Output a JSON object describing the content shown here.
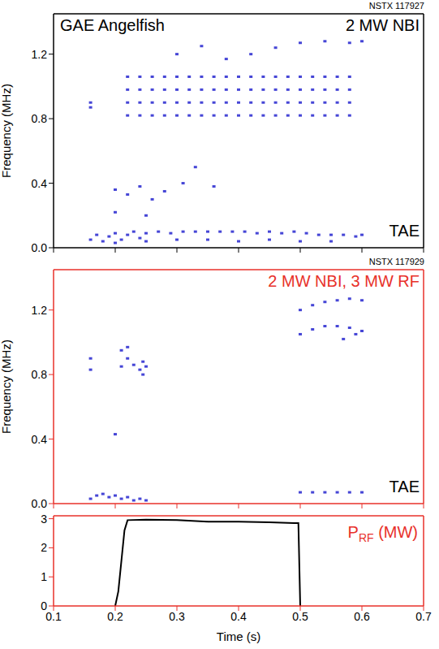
{
  "chart_data": [
    {
      "type": "scatter",
      "title": "GAE Angelfish",
      "subtitle": "2 MW NBI",
      "annotations": [
        "NSTX 117927",
        "TAE"
      ],
      "ylabel": "Frequency (MHz)",
      "color": "#4646d6",
      "marker": "square",
      "tick_labels": "y",
      "xlim": [
        0.1,
        0.7
      ],
      "xticks": [
        0.1,
        0.2,
        0.3,
        0.4,
        0.5,
        0.6,
        0.7
      ],
      "ylim": [
        0,
        1.45
      ],
      "yticks": [
        {
          "value": 0,
          "label": "0.0"
        },
        0.4,
        0.8,
        1.2
      ],
      "x": [
        0.16,
        0.17,
        0.18,
        0.19,
        0.2,
        0.21,
        0.22,
        0.23,
        0.24,
        0.25,
        0.27,
        0.29,
        0.31,
        0.33,
        0.35,
        0.37,
        0.39,
        0.41,
        0.43,
        0.45,
        0.47,
        0.49,
        0.51,
        0.53,
        0.55,
        0.57,
        0.59,
        0.6,
        0.2,
        0.25,
        0.3,
        0.35,
        0.4,
        0.45,
        0.5,
        0.55,
        0.16,
        0.16,
        0.22,
        0.22,
        0.22,
        0.22,
        0.24,
        0.24,
        0.24,
        0.24,
        0.26,
        0.26,
        0.26,
        0.26,
        0.28,
        0.28,
        0.28,
        0.28,
        0.3,
        0.3,
        0.3,
        0.3,
        0.32,
        0.32,
        0.32,
        0.32,
        0.34,
        0.34,
        0.34,
        0.34,
        0.36,
        0.36,
        0.36,
        0.36,
        0.38,
        0.38,
        0.38,
        0.38,
        0.4,
        0.4,
        0.4,
        0.4,
        0.42,
        0.42,
        0.42,
        0.42,
        0.44,
        0.44,
        0.44,
        0.44,
        0.46,
        0.46,
        0.46,
        0.46,
        0.48,
        0.48,
        0.48,
        0.48,
        0.5,
        0.5,
        0.5,
        0.5,
        0.52,
        0.52,
        0.52,
        0.52,
        0.54,
        0.54,
        0.54,
        0.54,
        0.56,
        0.56,
        0.56,
        0.56,
        0.58,
        0.58,
        0.58,
        0.58,
        0.34,
        0.42,
        0.46,
        0.5,
        0.54,
        0.58,
        0.6,
        0.3,
        0.38,
        0.2,
        0.22,
        0.24,
        0.26,
        0.28,
        0.31,
        0.33,
        0.36,
        0.2,
        0.25
      ],
      "values": [
        0.05,
        0.08,
        0.04,
        0.07,
        0.09,
        0.05,
        0.08,
        0.1,
        0.06,
        0.09,
        0.1,
        0.09,
        0.1,
        0.1,
        0.1,
        0.1,
        0.1,
        0.1,
        0.09,
        0.1,
        0.09,
        0.1,
        0.09,
        0.08,
        0.08,
        0.08,
        0.07,
        0.08,
        0.03,
        0.04,
        0.05,
        0.05,
        0.04,
        0.05,
        0.04,
        0.04,
        0.87,
        0.9,
        0.82,
        0.9,
        0.98,
        1.06,
        0.82,
        0.9,
        0.98,
        1.06,
        0.82,
        0.9,
        0.98,
        1.06,
        0.82,
        0.9,
        0.98,
        1.06,
        0.82,
        0.9,
        0.98,
        1.06,
        0.82,
        0.9,
        0.98,
        1.06,
        0.82,
        0.9,
        0.98,
        1.06,
        0.82,
        0.9,
        0.98,
        1.06,
        0.82,
        0.9,
        0.98,
        1.06,
        0.82,
        0.9,
        0.98,
        1.06,
        0.82,
        0.9,
        0.98,
        1.06,
        0.82,
        0.9,
        0.98,
        1.06,
        0.82,
        0.9,
        0.98,
        1.06,
        0.82,
        0.9,
        0.98,
        1.06,
        0.82,
        0.9,
        0.98,
        1.06,
        0.82,
        0.9,
        0.98,
        1.06,
        0.82,
        0.9,
        0.98,
        1.06,
        0.82,
        0.9,
        0.98,
        1.06,
        0.82,
        0.9,
        0.98,
        1.06,
        1.25,
        1.2,
        1.24,
        1.27,
        1.28,
        1.27,
        1.28,
        1.2,
        1.17,
        0.36,
        0.33,
        0.38,
        0.3,
        0.35,
        0.4,
        0.5,
        0.38,
        0.22,
        0.2
      ]
    },
    {
      "type": "scatter",
      "subtitle": "2 MW NBI, 3 MW RF",
      "annotations": [
        "NSTX 117929",
        "TAE"
      ],
      "ylabel": "Frequency (MHz)",
      "color": "#4646d6",
      "marker": "square",
      "tick_labels": "y",
      "xlim": [
        0.1,
        0.7
      ],
      "xticks": [
        0.1,
        0.2,
        0.3,
        0.4,
        0.5,
        0.6,
        0.7
      ],
      "ylim": [
        0,
        1.45
      ],
      "yticks": [
        {
          "value": 0,
          "label": "0.0"
        },
        0.4,
        0.8,
        1.2
      ],
      "x": [
        0.16,
        0.17,
        0.18,
        0.19,
        0.2,
        0.21,
        0.22,
        0.23,
        0.24,
        0.25,
        0.5,
        0.52,
        0.54,
        0.56,
        0.58,
        0.6,
        0.16,
        0.16,
        0.2,
        0.21,
        0.21,
        0.22,
        0.22,
        0.23,
        0.24,
        0.245,
        0.25,
        0.245,
        0.5,
        0.52,
        0.54,
        0.56,
        0.58,
        0.6,
        0.5,
        0.52,
        0.54,
        0.56,
        0.58,
        0.6,
        0.57,
        0.59
      ],
      "values": [
        0.03,
        0.05,
        0.06,
        0.04,
        0.05,
        0.03,
        0.04,
        0.02,
        0.03,
        0.02,
        0.07,
        0.07,
        0.07,
        0.07,
        0.07,
        0.07,
        0.83,
        0.9,
        0.43,
        0.85,
        0.95,
        0.9,
        0.97,
        0.86,
        0.83,
        0.88,
        0.85,
        0.8,
        1.05,
        1.08,
        1.1,
        1.1,
        1.09,
        1.07,
        1.2,
        1.23,
        1.25,
        1.26,
        1.27,
        1.26,
        1.02,
        1.05
      ]
    },
    {
      "type": "line",
      "annotation": [
        "P",
        "RF",
        " (MW)"
      ],
      "xlabel": "Time (s)",
      "xlim": [
        0.1,
        0.7
      ],
      "xticks": [
        0.1,
        0.2,
        0.3,
        0.4,
        0.5,
        0.6,
        0.7
      ],
      "ylim": [
        0,
        3.1
      ],
      "yticks": [
        0,
        1,
        2,
        3
      ],
      "series": [
        {
          "color": "#000000",
          "x": [
            0.2,
            0.205,
            0.215,
            0.22,
            0.25,
            0.3,
            0.35,
            0.4,
            0.45,
            0.49,
            0.497,
            0.5
          ],
          "values": [
            0,
            0.5,
            2.6,
            2.95,
            2.97,
            2.95,
            2.9,
            2.9,
            2.88,
            2.85,
            2.85,
            0
          ]
        }
      ]
    }
  ]
}
